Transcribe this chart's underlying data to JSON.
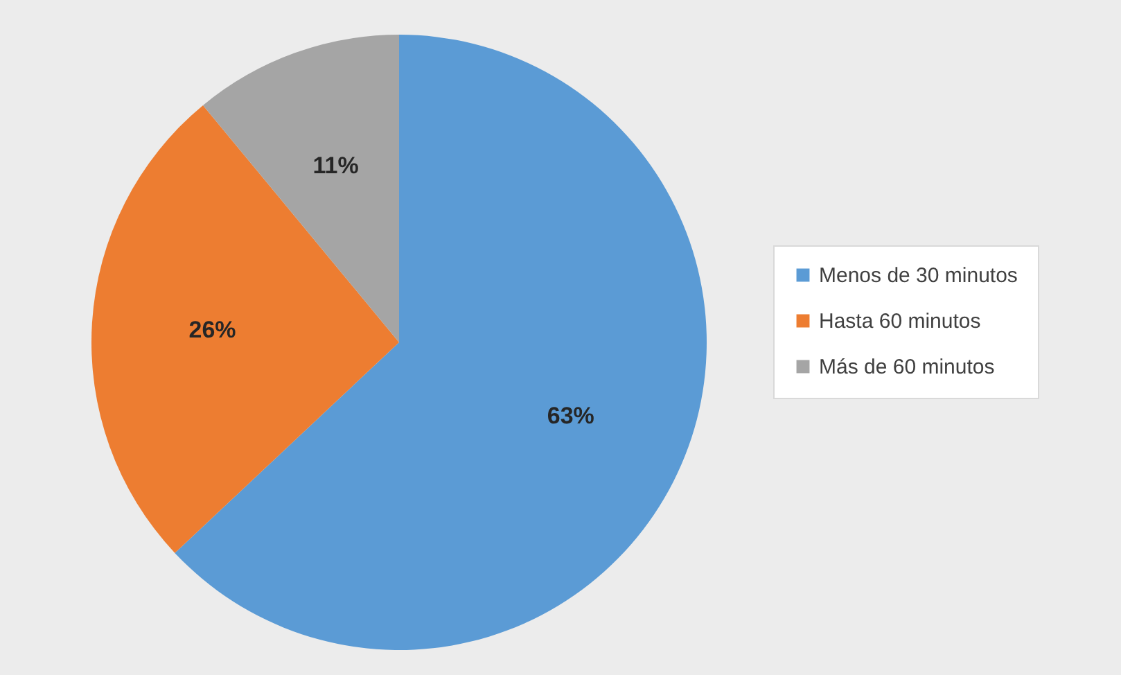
{
  "chart_data": {
    "type": "pie",
    "categories": [
      "Menos de 30 minutos",
      "Hasta 60 minutos",
      "Más de 60 minutos"
    ],
    "values": [
      63,
      26,
      11
    ],
    "colors": [
      "#5b9bd5",
      "#ed7d31",
      "#a5a5a5"
    ],
    "value_labels": [
      "63%",
      "26%",
      "11%"
    ],
    "legend": "right"
  }
}
